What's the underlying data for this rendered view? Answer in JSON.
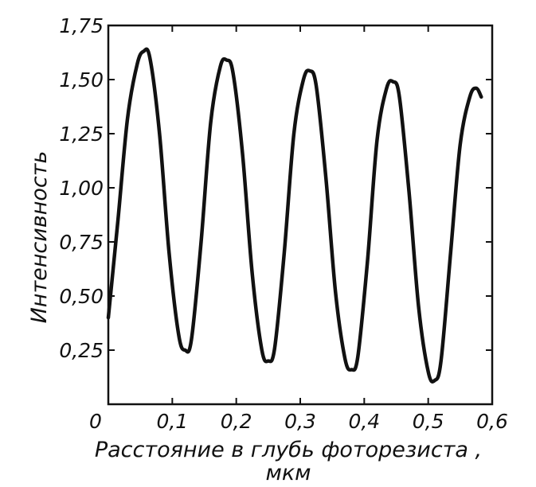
{
  "chart_data": {
    "type": "line",
    "title": "",
    "xlabel_line1": "Расстояние в глубь фоторезиста ,",
    "xlabel_line2": "мкм",
    "ylabel": "Интенсивность",
    "xlim": [
      0,
      0.6
    ],
    "ylim": [
      0,
      1.75
    ],
    "x_ticks": [
      0,
      0.1,
      0.2,
      0.3,
      0.4,
      0.5,
      0.6
    ],
    "x_tick_labels": [
      "0",
      "0,1",
      "0,2",
      "0,3",
      "0,4",
      "0,5",
      "0,6"
    ],
    "y_ticks": [
      0.25,
      0.5,
      0.75,
      1.0,
      1.25,
      1.5,
      1.75
    ],
    "y_tick_labels": [
      "0,25",
      "0,50",
      "0,75",
      "1,00",
      "1,25",
      "1,50",
      "1,75"
    ],
    "grid": false,
    "series": [
      {
        "points": [
          [
            0.0,
            0.4
          ],
          [
            0.015,
            0.85
          ],
          [
            0.03,
            1.32
          ],
          [
            0.045,
            1.57
          ],
          [
            0.055,
            1.63
          ],
          [
            0.065,
            1.6
          ],
          [
            0.08,
            1.25
          ],
          [
            0.095,
            0.7
          ],
          [
            0.11,
            0.32
          ],
          [
            0.12,
            0.25
          ],
          [
            0.13,
            0.3
          ],
          [
            0.145,
            0.75
          ],
          [
            0.16,
            1.3
          ],
          [
            0.175,
            1.56
          ],
          [
            0.185,
            1.59
          ],
          [
            0.195,
            1.53
          ],
          [
            0.21,
            1.15
          ],
          [
            0.225,
            0.6
          ],
          [
            0.24,
            0.25
          ],
          [
            0.25,
            0.2
          ],
          [
            0.26,
            0.26
          ],
          [
            0.275,
            0.7
          ],
          [
            0.29,
            1.25
          ],
          [
            0.305,
            1.5
          ],
          [
            0.315,
            1.54
          ],
          [
            0.325,
            1.47
          ],
          [
            0.34,
            1.05
          ],
          [
            0.355,
            0.52
          ],
          [
            0.37,
            0.21
          ],
          [
            0.38,
            0.16
          ],
          [
            0.39,
            0.22
          ],
          [
            0.405,
            0.66
          ],
          [
            0.42,
            1.22
          ],
          [
            0.435,
            1.46
          ],
          [
            0.445,
            1.49
          ],
          [
            0.455,
            1.42
          ],
          [
            0.47,
            0.98
          ],
          [
            0.485,
            0.45
          ],
          [
            0.5,
            0.15
          ],
          [
            0.51,
            0.11
          ],
          [
            0.52,
            0.2
          ],
          [
            0.535,
            0.7
          ],
          [
            0.55,
            1.2
          ],
          [
            0.565,
            1.42
          ],
          [
            0.575,
            1.46
          ],
          [
            0.583,
            1.42
          ]
        ]
      }
    ]
  }
}
